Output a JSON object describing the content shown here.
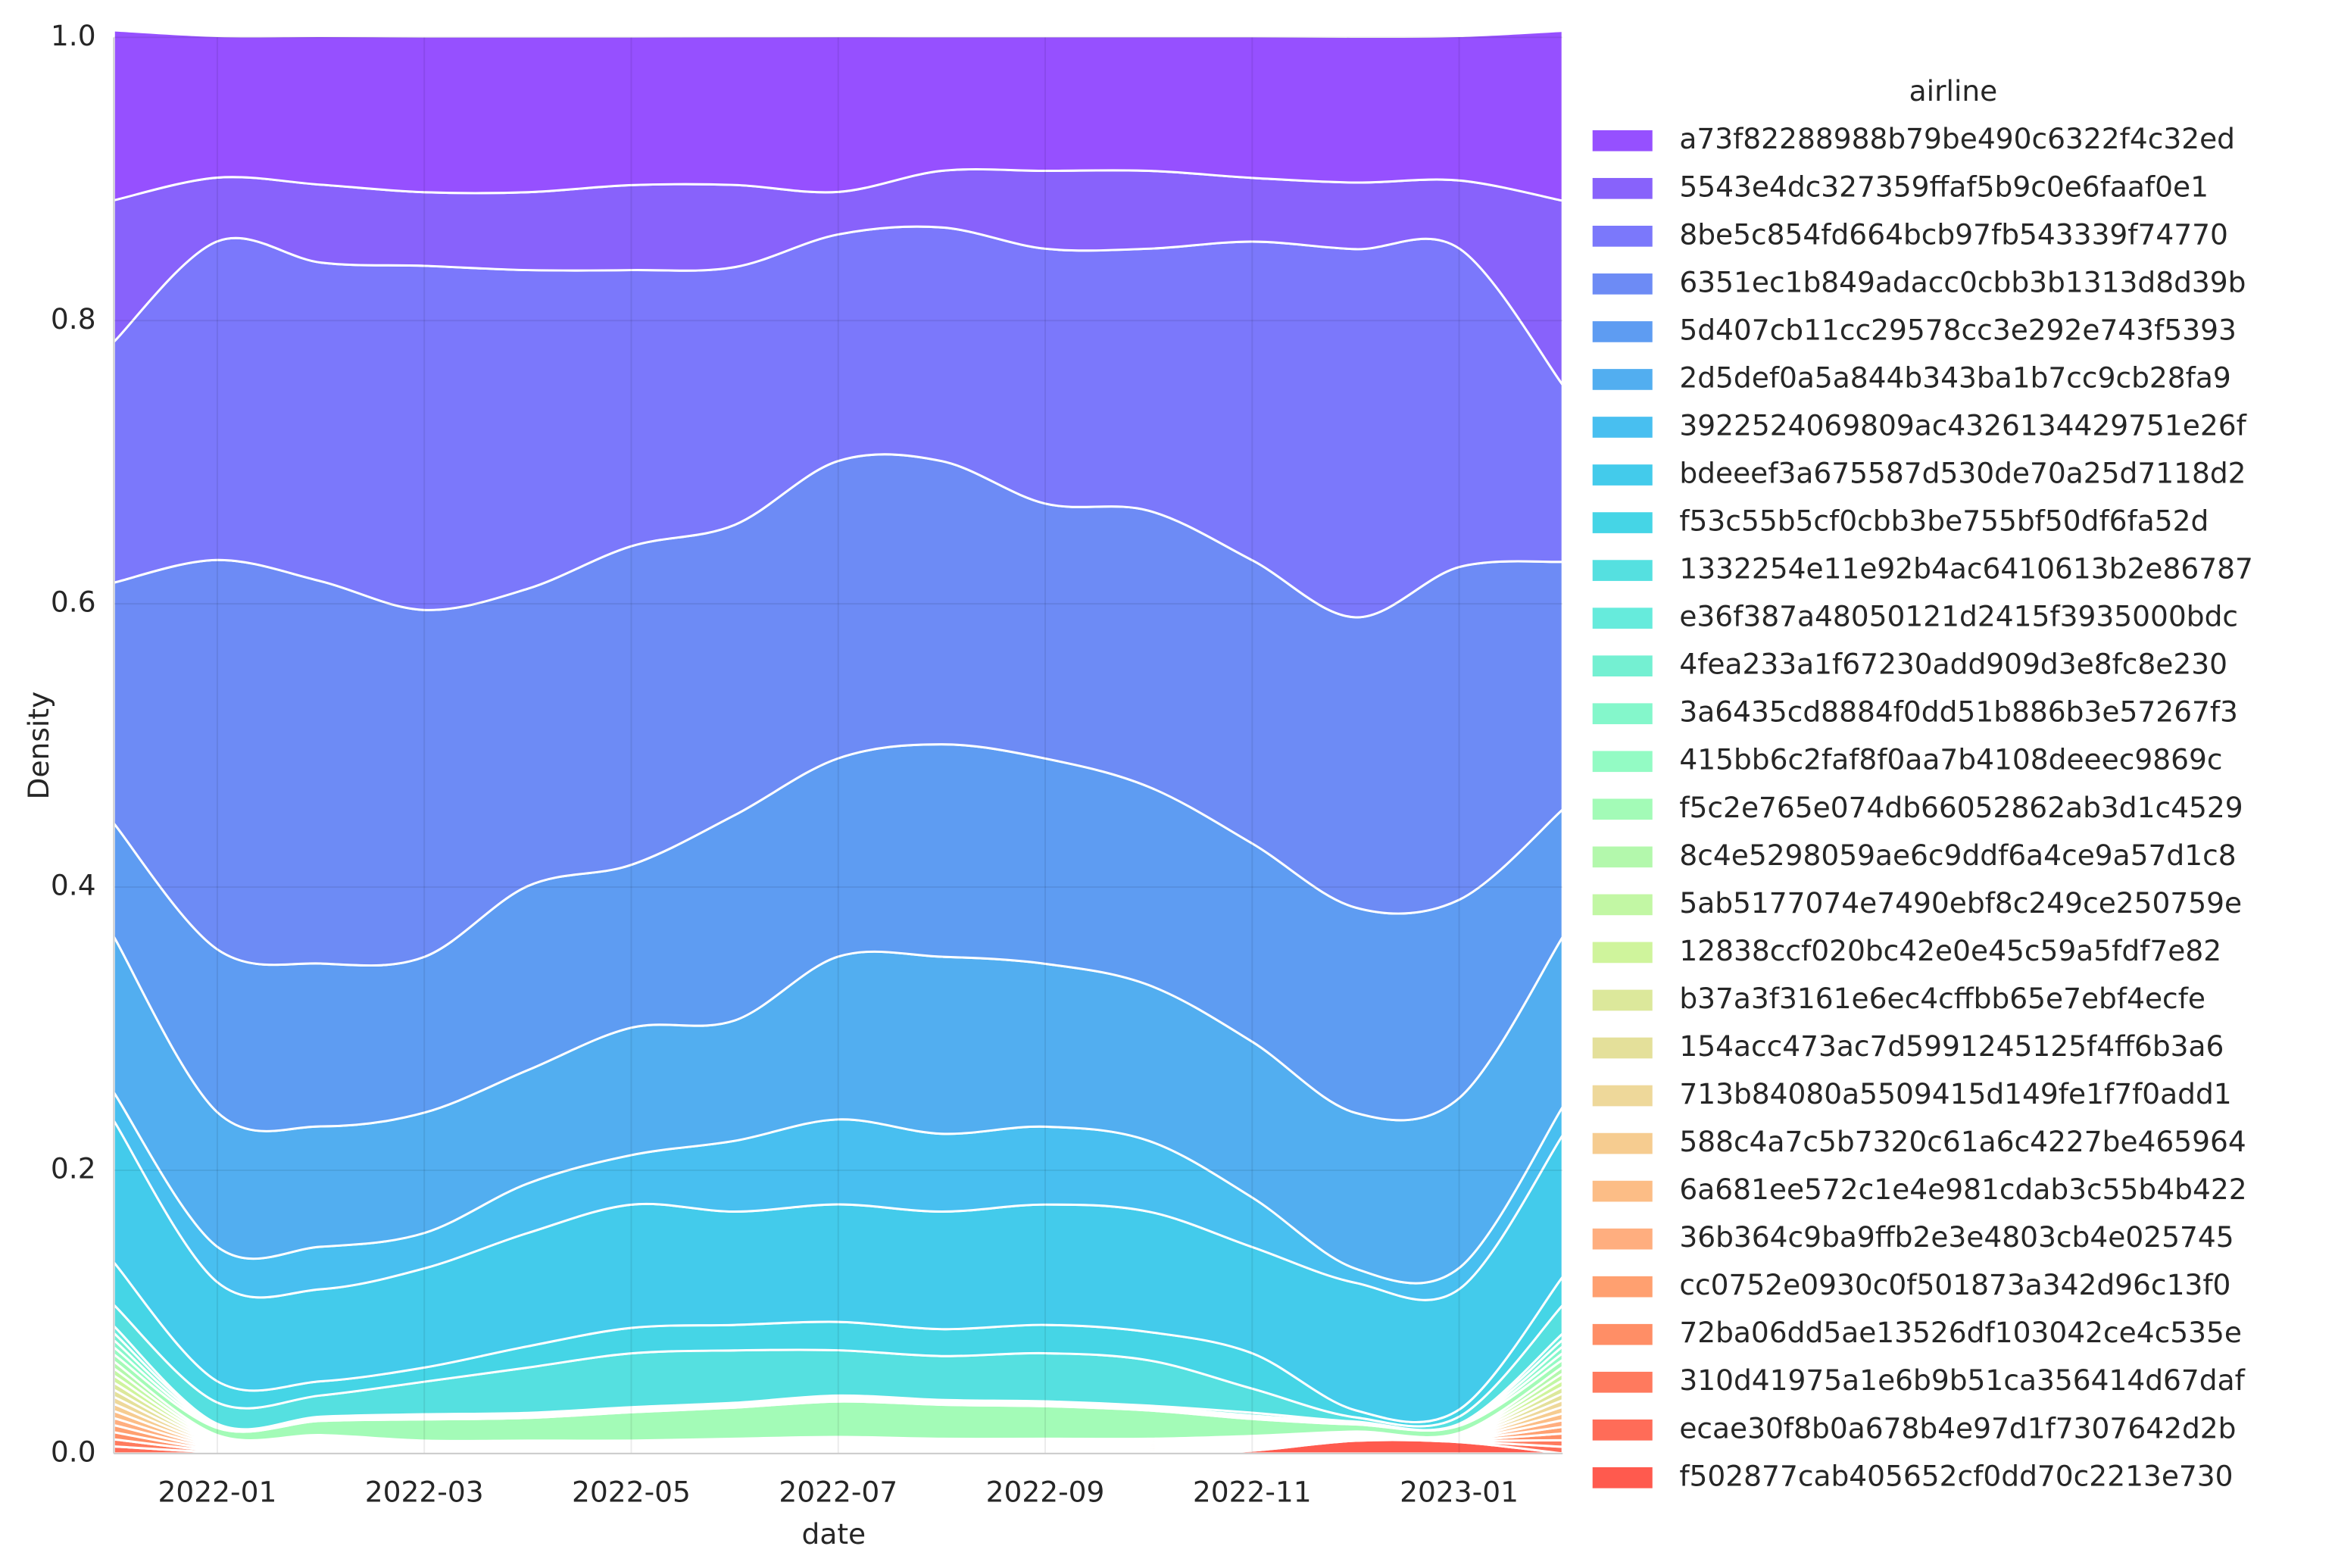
{
  "chart_data": {
    "type": "stacked_area",
    "xlabel": "date",
    "ylabel": "Density",
    "legend_title": "airline",
    "grid": true,
    "x": [
      "2021-12",
      "2022-01",
      "2022-02",
      "2022-03",
      "2022-04",
      "2022-05",
      "2022-06",
      "2022-07",
      "2022-08",
      "2022-09",
      "2022-10",
      "2022-11",
      "2022-12",
      "2023-01",
      "2023-02"
    ],
    "xlim": [
      "2021-12",
      "2023-02"
    ],
    "xticks": [
      "2022-01",
      "2022-03",
      "2022-05",
      "2022-07",
      "2022-09",
      "2022-11",
      "2023-01"
    ],
    "ylim": [
      0,
      1
    ],
    "yticks": [
      {
        "value": 0,
        "label": "0.0"
      },
      0.2,
      0.4,
      0.6,
      0.8,
      {
        "value": 1,
        "label": "1.0"
      }
    ],
    "series": [
      {
        "name": "a73f82288988b79be490c6322f4c32ed",
        "color": "#9650ff",
        "values": [
          0.12,
          0.1,
          0.105,
          0.11,
          0.11,
          0.105,
          0.105,
          0.11,
          0.095,
          0.095,
          0.095,
          0.1,
          0.103,
          0.102,
          0.12
        ]
      },
      {
        "name": "5543e4dc327359ffaf5b9c0e6faaf0e1",
        "color": "#8862fb",
        "values": [
          0.1,
          0.045,
          0.055,
          0.052,
          0.055,
          0.06,
          0.058,
          0.03,
          0.04,
          0.055,
          0.055,
          0.045,
          0.047,
          0.048,
          0.13
        ]
      },
      {
        "name": "8be5c854fd664bcb97fb543339f74770",
        "color": "#7b78fb",
        "values": [
          0.17,
          0.225,
          0.225,
          0.243,
          0.225,
          0.195,
          0.182,
          0.16,
          0.165,
          0.18,
          0.185,
          0.225,
          0.26,
          0.225,
          0.125
        ]
      },
      {
        "name": "6351ec1b849adacc0cbb3b1313d8d39b",
        "color": "#6d8bf5",
        "values": [
          0.17,
          0.275,
          0.27,
          0.245,
          0.21,
          0.225,
          0.205,
          0.21,
          0.2,
          0.18,
          0.195,
          0.2,
          0.205,
          0.235,
          0.175
        ]
      },
      {
        "name": "5d407cb11cc29578cc3e292e743f5393",
        "color": "#5e9cf2",
        "values": [
          0.08,
          0.115,
          0.115,
          0.11,
          0.13,
          0.115,
          0.145,
          0.14,
          0.15,
          0.145,
          0.14,
          0.14,
          0.145,
          0.14,
          0.09
        ]
      },
      {
        "name": "2d5def0a5a844b343ba1b7cc9cb28fa9",
        "color": "#52aef0",
        "values": [
          0.11,
          0.095,
          0.085,
          0.085,
          0.08,
          0.09,
          0.085,
          0.115,
          0.125,
          0.115,
          0.11,
          0.11,
          0.11,
          0.12,
          0.12
        ]
      },
      {
        "name": "3922524069809ac4326134429751e26f",
        "color": "#48bff0",
        "values": [
          0.02,
          0.025,
          0.03,
          0.025,
          0.035,
          0.035,
          0.05,
          0.06,
          0.055,
          0.055,
          0.05,
          0.035,
          0.01,
          0.015,
          0.02
        ]
      },
      {
        "name": "bdeeef3a675587d530de70a25d7118d2",
        "color": "#43cbeb",
        "values": [
          0.1,
          0.07,
          0.065,
          0.07,
          0.08,
          0.087,
          0.08,
          0.083,
          0.083,
          0.085,
          0.085,
          0.075,
          0.09,
          0.085,
          0.1
        ]
      },
      {
        "name": "f53c55b5cf0cbb3be755bf50df6fa52d",
        "color": "#45d5e6",
        "values": [
          0.03,
          0.015,
          0.01,
          0.01,
          0.015,
          0.018,
          0.018,
          0.02,
          0.019,
          0.02,
          0.02,
          0.025,
          0.005,
          0.005,
          0.02
        ]
      },
      {
        "name": "1332254e11e92b4ac6410613b2e86787",
        "color": "#55e0e0",
        "values": [
          0.015,
          0.015,
          0.015,
          0.023,
          0.032,
          0.038,
          0.037,
          0.032,
          0.031,
          0.034,
          0.032,
          0.017,
          0.003,
          0.005,
          0.02
        ]
      },
      {
        "name": "e36f387a48050121d2415f3935000bdc",
        "color": "#66ebdc",
        "values": [
          0.005,
          0,
          0,
          0.0015,
          0.0015,
          0.0015,
          0.001,
          0.0015,
          0.001,
          0.001,
          0.001,
          0.002,
          0.0005,
          0,
          0.0045
        ]
      },
      {
        "name": "4fea233a1f67230add909d3e8fc8e230",
        "color": "#74f0d2",
        "values": [
          0.005,
          0.001,
          0.001,
          0.0007,
          0.0007,
          0.0007,
          0.0008,
          0.0009,
          0.0008,
          0.0008,
          0.0008,
          0.0008,
          0.0005,
          0.0005,
          0.0047
        ]
      },
      {
        "name": "3a6435cd8884f0dd51b886b3e57267f3",
        "color": "#84f7cb",
        "values": [
          0.005,
          0.001,
          0.001,
          0.0007,
          0.0007,
          0.0007,
          0.0008,
          0.0009,
          0.0008,
          0.0008,
          0.0008,
          0.0008,
          0.0005,
          0.0005,
          0.0047
        ]
      },
      {
        "name": "415bb6c2faf8f0aa7b4108deeec9869c",
        "color": "#93fbc4",
        "values": [
          0.005,
          0.001,
          0.001,
          0.0007,
          0.0007,
          0.0007,
          0.0008,
          0.0009,
          0.0008,
          0.0008,
          0.0008,
          0.0008,
          0.0005,
          0.0005,
          0.0047
        ]
      },
      {
        "name": "f5c2e765e074db66052862ab3d1c4529",
        "color": "#a3fbb7",
        "values": [
          0.005,
          0.005,
          0.01,
          0.015,
          0.016,
          0.02,
          0.022,
          0.025,
          0.024,
          0.023,
          0.02,
          0.012,
          0.005,
          0.005,
          0.005
        ]
      },
      {
        "name": "8c4e5298059ae6c9ddf6a4ce9a57d1c8",
        "color": "#b3f8ac",
        "values": [
          0.005,
          0.001,
          0.001,
          0.0007,
          0.0007,
          0.0007,
          0.0008,
          0.0009,
          0.0008,
          0.0008,
          0.0008,
          0.0008,
          0.0005,
          0.0005,
          0.0047
        ]
      },
      {
        "name": "5ab5177074e7490ebf8c249ce250759e",
        "color": "#c2f7a4",
        "values": [
          0.005,
          0.001,
          0.001,
          0.0007,
          0.0007,
          0.0007,
          0.0008,
          0.0009,
          0.0008,
          0.0008,
          0.0008,
          0.0008,
          0.0005,
          0.0005,
          0.0047
        ]
      },
      {
        "name": "12838ccf020bc42e0e45c59a5fdf7e82",
        "color": "#cff49c",
        "values": [
          0.005,
          0.001,
          0.001,
          0.0007,
          0.0007,
          0.0007,
          0.0008,
          0.0009,
          0.0008,
          0.0008,
          0.0008,
          0.0008,
          0.0005,
          0.0005,
          0.0047
        ]
      },
      {
        "name": "b37a3f3161e6ec4cffbb65e7ebf4ecfe",
        "color": "#dce89b",
        "values": [
          0.005,
          0.001,
          0.001,
          0.0007,
          0.0007,
          0.0007,
          0.0008,
          0.0009,
          0.0008,
          0.0008,
          0.0008,
          0.0008,
          0.0005,
          0.0005,
          0.0047
        ]
      },
      {
        "name": "154acc473ac7d5991245125f4ff6b3a6",
        "color": "#e4e09a",
        "values": [
          0.005,
          0.001,
          0.001,
          0.0007,
          0.0007,
          0.0007,
          0.0008,
          0.0009,
          0.0008,
          0.0008,
          0.0008,
          0.0008,
          0.0005,
          0.0005,
          0.0047
        ]
      },
      {
        "name": "713b84080a5509415d149fe1f7f0add1",
        "color": "#eed89a",
        "values": [
          0.005,
          0.001,
          0.001,
          0.0007,
          0.0007,
          0.0007,
          0.0008,
          0.0009,
          0.0008,
          0.0008,
          0.0008,
          0.0008,
          0.0005,
          0.0005,
          0.0047
        ]
      },
      {
        "name": "588c4a7c5b7320c61a6c4227be465964",
        "color": "#f6cc90",
        "values": [
          0.005,
          0.001,
          0.001,
          0.0007,
          0.0007,
          0.0007,
          0.0008,
          0.0009,
          0.0008,
          0.0008,
          0.0008,
          0.0008,
          0.0005,
          0.0005,
          0.0047
        ]
      },
      {
        "name": "6a681ee572c1e4e981cdab3c55b4b422",
        "color": "#fcbd86",
        "values": [
          0.005,
          0.001,
          0.001,
          0.0007,
          0.0007,
          0.0007,
          0.0008,
          0.0009,
          0.0008,
          0.0008,
          0.0008,
          0.0008,
          0.0005,
          0.0005,
          0.0047
        ]
      },
      {
        "name": "36b364c9ba9ffb2e3e4803cb4e025745",
        "color": "#ffae7f",
        "values": [
          0.005,
          0.001,
          0.001,
          0.0007,
          0.0007,
          0.0007,
          0.0008,
          0.0009,
          0.0008,
          0.0008,
          0.0008,
          0.0008,
          0.0005,
          0.0005,
          0.0047
        ]
      },
      {
        "name": "cc0752e0930c0f501873a342d96c13f0",
        "color": "#ffa070",
        "values": [
          0.005,
          0.001,
          0.001,
          0.0007,
          0.0007,
          0.0007,
          0.0008,
          0.0009,
          0.0008,
          0.0008,
          0.0008,
          0.0008,
          0.0005,
          0.0005,
          0.0047
        ]
      },
      {
        "name": "72ba06dd5ae13526df103042ce4c535e",
        "color": "#ff8e66",
        "values": [
          0.005,
          0.001,
          0.001,
          0.0007,
          0.0007,
          0.0007,
          0.0008,
          0.0009,
          0.0008,
          0.0008,
          0.0008,
          0.0008,
          0.0005,
          0.0005,
          0.0047
        ]
      },
      {
        "name": "310d41975a1e6b9b51ca356414d67daf",
        "color": "#ff7a5e",
        "values": [
          0.005,
          0.001,
          0.001,
          0.0007,
          0.0007,
          0.0007,
          0.0008,
          0.0009,
          0.0008,
          0.0008,
          0.0008,
          0.0008,
          0.0005,
          0.0005,
          0.0047
        ]
      },
      {
        "name": "ecae30f8b0a678b4e97d1f7307642d2b",
        "color": "#ff6c58",
        "values": [
          0.005,
          0.001,
          0.001,
          0.0007,
          0.0007,
          0.0007,
          0.0008,
          0.0009,
          0.0008,
          0.0008,
          0.0008,
          0.0008,
          0.0005,
          0.0005,
          0.0047
        ]
      },
      {
        "name": "f502877cab405652cf0dd70c2213e730",
        "color": "#ff5a4e",
        "values": [
          0,
          0,
          0,
          0,
          0,
          0,
          0,
          0,
          0,
          0,
          0,
          0.002,
          0.009,
          0.008,
          0
        ]
      }
    ]
  }
}
